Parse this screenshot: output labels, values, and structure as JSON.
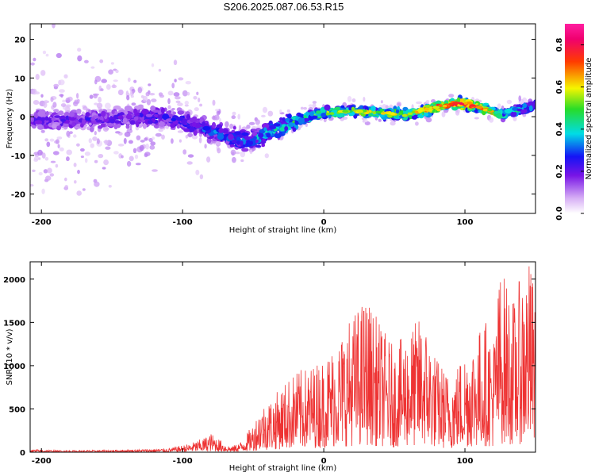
{
  "title": "S206.2025.087.06.53.R15",
  "chart_data": [
    {
      "type": "heatmap",
      "xlabel": "Height of straight line (km)",
      "ylabel": "Frequency (Hz)",
      "xlim": [
        -208,
        150
      ],
      "ylim": [
        -25,
        24
      ],
      "x_ticks": [
        -200,
        -100,
        0,
        100
      ],
      "y_ticks": [
        -20,
        -10,
        0,
        10,
        20
      ],
      "ridge": {
        "x": [
          -208,
          -180,
          -150,
          -125,
          -100,
          -85,
          -70,
          -60,
          -50,
          -40,
          -30,
          -20,
          -10,
          0,
          20,
          40,
          60,
          80,
          95,
          110,
          125,
          140,
          150
        ],
        "frequency": [
          -1,
          -1,
          -0.5,
          0,
          -1,
          -3,
          -5,
          -6,
          -6,
          -4,
          -3,
          -1,
          0,
          1,
          1.5,
          1,
          0.5,
          2.5,
          3.5,
          2.5,
          0.5,
          2,
          3
        ],
        "amplitude": [
          0.25,
          0.25,
          0.25,
          0.28,
          0.3,
          0.35,
          0.35,
          0.38,
          0.4,
          0.42,
          0.45,
          0.5,
          0.55,
          0.6,
          0.65,
          0.65,
          0.7,
          0.8,
          0.85,
          0.8,
          0.55,
          0.45,
          0.4
        ]
      },
      "colorbar": {
        "label": "Normalized spectral amplitude",
        "range": [
          0.0,
          0.9
        ],
        "ticks": [
          "0.0",
          "0.2",
          "0.4",
          "0.6",
          "0.8"
        ]
      }
    },
    {
      "type": "line",
      "xlabel": "Height of straight line (km)",
      "ylabel": "SNR (10 * v/v)",
      "xlim": [
        -208,
        150
      ],
      "ylim": [
        0,
        2200
      ],
      "x_ticks": [
        -200,
        -100,
        0,
        100
      ],
      "y_ticks": [
        0,
        500,
        1000,
        1500,
        2000
      ],
      "line_color": "#ee3333",
      "series": [
        {
          "x": [
            -208,
            -190,
            -170,
            -150,
            -130,
            -110,
            -95,
            -85,
            -80,
            -75,
            -70,
            -65,
            -58,
            -50,
            -45,
            -40,
            -35,
            -30,
            -20,
            -10,
            0,
            10,
            20,
            30,
            35,
            40,
            50,
            60,
            70,
            80,
            90,
            100,
            110,
            115,
            120,
            125,
            130,
            135,
            140,
            145,
            150
          ],
          "y": [
            30,
            20,
            20,
            25,
            30,
            40,
            90,
            150,
            200,
            150,
            90,
            60,
            120,
            300,
            480,
            550,
            600,
            700,
            850,
            900,
            1000,
            1200,
            1450,
            1650,
            1500,
            1350,
            1100,
            1300,
            1450,
            1000,
            800,
            1100,
            1300,
            1400,
            1200,
            1950,
            1800,
            1600,
            1900,
            2050,
            1750
          ]
        }
      ]
    }
  ]
}
